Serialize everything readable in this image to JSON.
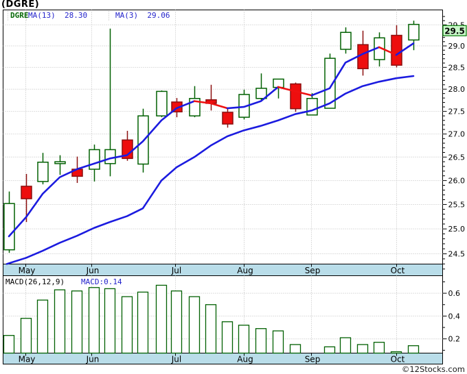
{
  "header": {
    "title": "(DGRE)"
  },
  "watermark": "©12Stocks.com",
  "price_panel": {
    "legend": {
      "symbol": "DGRE",
      "ma13": "MA(13)  28.30",
      "ma3": "MA(3)  29.06"
    },
    "price_tag": "29.5"
  },
  "macd_panel": {
    "legend_label": "MACD(26,12,9)",
    "legend_value": "MACD:0.14"
  },
  "colors": {
    "up_green": "#016001",
    "down_fill": "#ee0e0e",
    "down_border": "#8c0f0f",
    "ma_blue": "#1b1bdf",
    "ma_fall_red": "#ee1111",
    "grid": "#bcbcbc",
    "axis_band": "#b9dde9",
    "tag_bg": "#c9f8c9",
    "tag_border": "#067806",
    "text": "#000000"
  },
  "chart_data": [
    {
      "type": "candlestick",
      "symbol": "DGRE",
      "interval": "weekly",
      "x_axis": {
        "months": [
          "May",
          "Jun",
          "Jul",
          "Aug",
          "Sep",
          "Oct"
        ],
        "month_x": [
          37,
          133,
          255,
          355,
          453,
          577
        ]
      },
      "y_axis": {
        "scale": "log",
        "ticks": [
          29.5,
          29.0,
          28.5,
          28.0,
          27.5,
          27.0,
          26.5,
          26.0,
          25.5,
          25.0,
          24.5
        ],
        "minor_step": 0.1,
        "range": [
          24.15,
          29.75
        ],
        "last_price_tag": 29.5
      },
      "series": {
        "candles": [
          [
            13,
            24.58,
            25.77,
            24.52,
            25.52
          ],
          [
            38,
            25.88,
            26.14,
            25.14,
            25.62
          ],
          [
            62,
            25.98,
            26.59,
            25.92,
            26.39
          ],
          [
            87,
            26.36,
            26.54,
            26.12,
            26.4
          ],
          [
            112,
            26.24,
            26.51,
            25.95,
            26.09
          ],
          [
            137,
            26.24,
            26.77,
            25.98,
            26.66
          ],
          [
            160,
            26.36,
            29.41,
            26.09,
            26.66
          ],
          [
            185,
            26.87,
            27.07,
            26.42,
            26.47
          ],
          [
            208,
            26.35,
            27.56,
            26.17,
            27.4
          ],
          [
            235,
            27.4,
            27.97,
            27.37,
            27.95
          ],
          [
            257,
            27.71,
            27.8,
            27.37,
            27.49
          ],
          [
            283,
            27.4,
            28.07,
            27.37,
            27.79
          ],
          [
            307,
            27.76,
            28.1,
            27.52,
            27.68
          ],
          [
            331,
            27.48,
            27.57,
            27.14,
            27.22
          ],
          [
            355,
            27.37,
            27.99,
            27.32,
            27.88
          ],
          [
            380,
            27.79,
            28.36,
            27.73,
            28.02
          ],
          [
            405,
            28.04,
            28.23,
            27.79,
            28.23
          ],
          [
            430,
            28.12,
            28.15,
            27.49,
            27.56
          ],
          [
            454,
            27.42,
            27.91,
            27.42,
            27.79
          ],
          [
            480,
            27.57,
            28.82,
            27.57,
            28.71
          ],
          [
            503,
            28.92,
            29.44,
            28.82,
            29.32
          ],
          [
            528,
            29.03,
            29.36,
            28.31,
            28.47
          ],
          [
            552,
            28.68,
            29.32,
            28.52,
            29.19
          ],
          [
            577,
            29.25,
            29.49,
            28.5,
            28.55
          ],
          [
            602,
            29.14,
            29.6,
            28.9,
            29.51
          ]
        ],
        "ma3": {
          "label": "MA(3)",
          "current": 29.06,
          "points": [
            [
              13,
              24.85,
              "b"
            ],
            [
              38,
              25.24,
              "b"
            ],
            [
              62,
              25.72,
              "b"
            ],
            [
              87,
              26.07,
              "b"
            ],
            [
              112,
              26.24,
              "b"
            ],
            [
              137,
              26.36,
              "b"
            ],
            [
              160,
              26.47,
              "b"
            ],
            [
              185,
              26.54,
              "b"
            ],
            [
              208,
              26.84,
              "b"
            ],
            [
              235,
              27.3,
              "b"
            ],
            [
              257,
              27.57,
              "b"
            ],
            [
              283,
              27.73,
              "r"
            ],
            [
              307,
              27.68,
              "r"
            ],
            [
              331,
              27.57,
              "b"
            ],
            [
              355,
              27.6,
              "b"
            ],
            [
              380,
              27.73,
              "b"
            ],
            [
              405,
              28.05,
              "r"
            ],
            [
              430,
              27.95,
              "r"
            ],
            [
              454,
              27.86,
              "b"
            ],
            [
              480,
              28.02,
              "b"
            ],
            [
              503,
              28.61,
              "b"
            ],
            [
              528,
              28.81,
              "b"
            ],
            [
              552,
              28.97,
              "r"
            ],
            [
              577,
              28.79,
              "b"
            ],
            [
              602,
              29.06,
              "b"
            ]
          ]
        },
        "ma13": {
          "label": "MA(13)",
          "current": 28.3,
          "points": [
            [
              10,
              24.3
            ],
            [
              38,
              24.42
            ],
            [
              62,
              24.56
            ],
            [
              87,
              24.72
            ],
            [
              112,
              24.86
            ],
            [
              137,
              25.02
            ],
            [
              160,
              25.14
            ],
            [
              185,
              25.26
            ],
            [
              208,
              25.42
            ],
            [
              235,
              26.0
            ],
            [
              257,
              26.28
            ],
            [
              283,
              26.5
            ],
            [
              307,
              26.75
            ],
            [
              331,
              26.95
            ],
            [
              355,
              27.08
            ],
            [
              380,
              27.18
            ],
            [
              405,
              27.3
            ],
            [
              430,
              27.44
            ],
            [
              454,
              27.52
            ],
            [
              480,
              27.68
            ],
            [
              503,
              27.9
            ],
            [
              528,
              28.07
            ],
            [
              552,
              28.17
            ],
            [
              577,
              28.25
            ],
            [
              602,
              28.3
            ]
          ]
        }
      }
    },
    {
      "type": "bar",
      "name": "MACD(26,12,9)",
      "current": 0.14,
      "y_axis": {
        "ticks": [
          0.6,
          0.4,
          0.2
        ],
        "minor_step": 0.1,
        "range": [
          0.08,
          0.75
        ]
      },
      "bars": [
        [
          13,
          0.23
        ],
        [
          38,
          0.38
        ],
        [
          62,
          0.54
        ],
        [
          87,
          0.63
        ],
        [
          112,
          0.62
        ],
        [
          137,
          0.65
        ],
        [
          160,
          0.64
        ],
        [
          185,
          0.57
        ],
        [
          208,
          0.61
        ],
        [
          235,
          0.67
        ],
        [
          257,
          0.62
        ],
        [
          283,
          0.57
        ],
        [
          307,
          0.5
        ],
        [
          331,
          0.35
        ],
        [
          355,
          0.32
        ],
        [
          380,
          0.29
        ],
        [
          405,
          0.27
        ],
        [
          430,
          0.15
        ],
        [
          454,
          null
        ],
        [
          480,
          0.13
        ],
        [
          503,
          0.21
        ],
        [
          528,
          0.15
        ],
        [
          552,
          0.17
        ],
        [
          577,
          0.08
        ],
        [
          602,
          0.14
        ]
      ]
    }
  ]
}
